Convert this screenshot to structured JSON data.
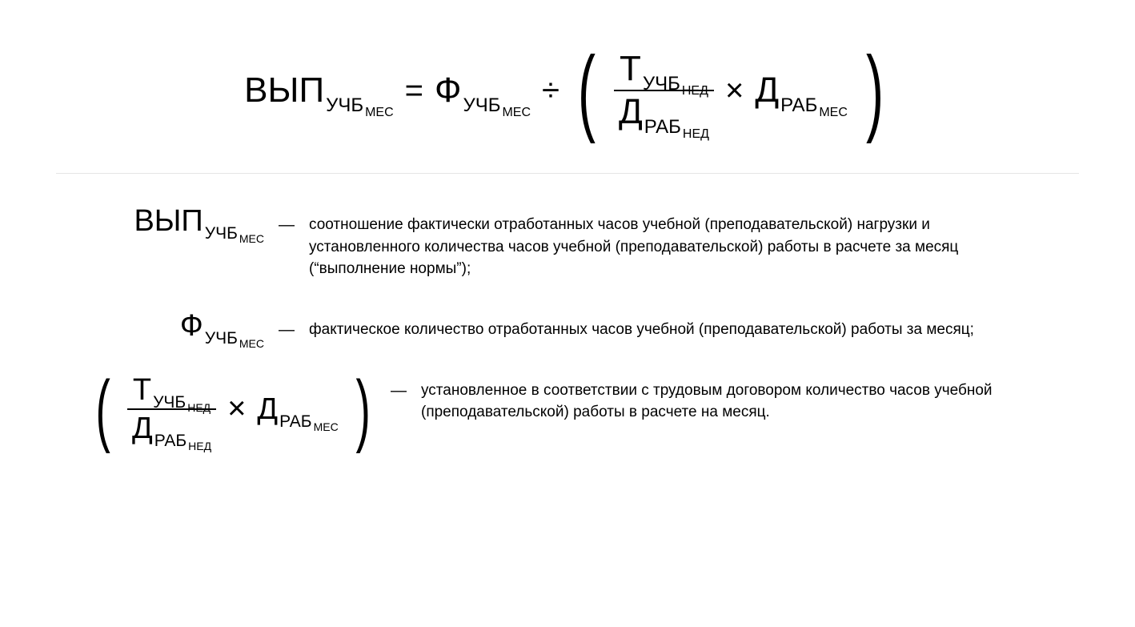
{
  "colors": {
    "text": "#000000",
    "bg": "#ffffff",
    "divider": "#e5e5e5"
  },
  "typography": {
    "base_fontsize_pt": 44,
    "sub1_fontsize_pt": 24,
    "sub2_fontsize_pt": 16,
    "desc_fontsize_pt": 19
  },
  "formula": {
    "lhs": {
      "base": "ВЫП",
      "sub1": "УЧБ",
      "sub2": "МЕС"
    },
    "eq": "=",
    "rhs1": {
      "base": "Ф",
      "sub1": "УЧБ",
      "sub2": "МЕС"
    },
    "div": "÷",
    "paren": {
      "open": "(",
      "frac": {
        "num": {
          "base": "Т",
          "sub1": "УЧБ",
          "sub2": "НЕД"
        },
        "den": {
          "base": "Д",
          "sub1": "РАБ",
          "sub2": "НЕД"
        }
      },
      "mul": "×",
      "term": {
        "base": "Д",
        "sub1": "РАБ",
        "sub2": "МЕС"
      },
      "close": ")"
    }
  },
  "legend": [
    {
      "symbol": {
        "kind": "term",
        "base": "ВЫП",
        "sub1": "УЧБ",
        "sub2": "МЕС"
      },
      "dash": "—",
      "desc": "соотношение фактически отработанных часов учебной (преподавательской) нагрузки и установленного количества часов учебной (преподавательской) работы в расчете за месяц (“выполнение нормы”);"
    },
    {
      "symbol": {
        "kind": "term",
        "base": "Ф",
        "sub1": "УЧБ",
        "sub2": "МЕС"
      },
      "dash": "—",
      "desc": "фактическое количество отработанных часов учебной (преподавательской) работы за месяц;"
    },
    {
      "symbol": {
        "kind": "paren",
        "open": "(",
        "frac": {
          "num": {
            "base": "Т",
            "sub1": "УЧБ",
            "sub2": "НЕД"
          },
          "den": {
            "base": "Д",
            "sub1": "РАБ",
            "sub2": "НЕД"
          }
        },
        "mul": "×",
        "term": {
          "base": "Д",
          "sub1": "РАБ",
          "sub2": "МЕС"
        },
        "close": ")"
      },
      "dash": "—",
      "desc": "установленное в соответствии с трудовым договором количество часов учебной (преподавательской) работы в расчете на месяц."
    }
  ]
}
